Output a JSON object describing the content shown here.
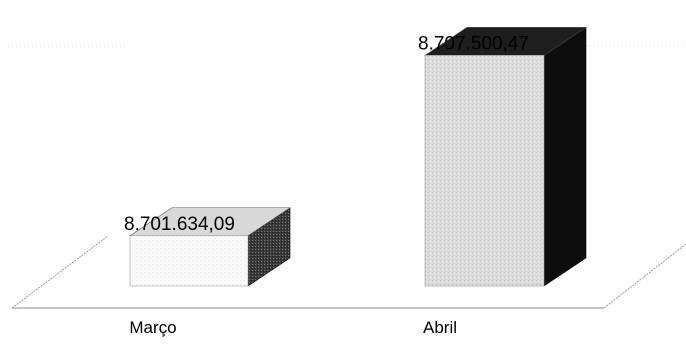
{
  "chart_data": {
    "type": "bar",
    "categories": [
      "Março",
      "Abril"
    ],
    "values": [
      8701634.09,
      8707500.47
    ],
    "data_labels": [
      "8.701.634,09",
      "8.707.500,47"
    ],
    "title": "",
    "xlabel": "",
    "ylabel": "",
    "ylim": [
      8700000,
      8708000
    ],
    "grid": false,
    "legend": "none",
    "colors": {
      "bar_front": [
        "#fdfdfd",
        "#d9d9d9"
      ],
      "bar_side": [
        "#5a5a5a",
        "#111111"
      ],
      "bar_top": [
        "#d6d6d6",
        "#2a2a2a"
      ],
      "floor_line": "#8c8c8c"
    }
  }
}
